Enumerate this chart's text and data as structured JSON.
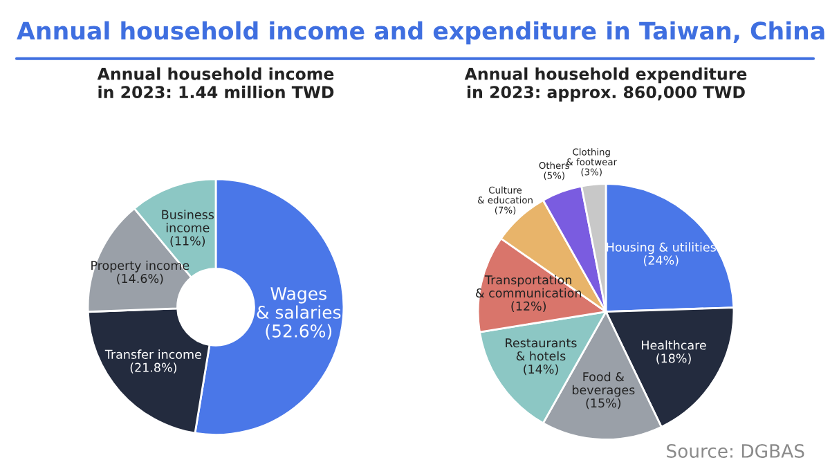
{
  "chart_data": [
    {
      "type": "donut",
      "title": "Annual household income\nin 2023: 1.44 million TWD",
      "annotations": [
        "Annual household income and expenditure in Taiwan, China"
      ],
      "categories": [
        "Wages\n& salaries",
        "Transfer income",
        "Property income",
        "Business\nincome"
      ],
      "values": [
        52.6,
        21.8,
        14.6,
        11
      ],
      "value_labels": [
        "(52.6%)",
        "(21.8%)",
        "(14.6%)",
        "(11%)"
      ],
      "colors": [
        "#4a77e8",
        "#232b3e",
        "#9aa0a8",
        "#8cc7c4"
      ]
    },
    {
      "type": "pie",
      "title": "Annual household expenditure\nin 2023: approx. 860,000 TWD",
      "annotations": [
        "Source: DGBAS"
      ],
      "categories": [
        "Housing & utilities",
        "Healthcare",
        "Food &\nbeverages",
        "Restaurants\n& hotels",
        "Transportation\n& communication",
        "Culture\n& education",
        "Others",
        "Clothing\n& footwear"
      ],
      "values": [
        24,
        18,
        15,
        14,
        12,
        7,
        5,
        3
      ],
      "value_labels": [
        "(24%)",
        "(18%)",
        "(15%)",
        "(14%)",
        "(12%)",
        "(7%)",
        "(5%)",
        "(3%)"
      ],
      "colors": [
        "#4a77e8",
        "#232b3e",
        "#9aa0a8",
        "#8cc7c4",
        "#d9756b",
        "#e8b46a",
        "#7a5ce0",
        "#c8c8c8"
      ]
    }
  ]
}
